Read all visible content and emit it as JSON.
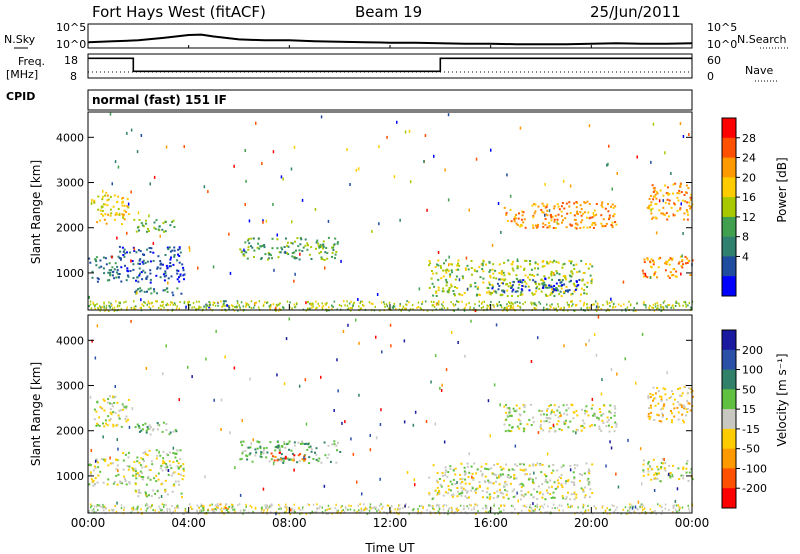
{
  "header": {
    "station": "Fort Hays West (fitACF)",
    "beam": "Beam 19",
    "date": "25/Jun/2011"
  },
  "strip_labels": {
    "nsky": "N.Sky",
    "nsearch": "N.Search",
    "freq": "Freq.",
    "freq_unit": "[MHz]",
    "nave": "Nave",
    "cpid": "CPID",
    "mode": "normal (fast) 151 IF"
  },
  "chart_data": [
    {
      "type": "line",
      "title": "N.Sky / N.Search",
      "x_label": "Time UT",
      "x_ticks_hours": [
        0,
        4,
        8,
        12,
        16,
        20,
        24
      ],
      "ylim_log10": [
        0,
        5
      ],
      "left_tick_labels": [
        "10^5",
        "10^0"
      ],
      "right_tick_labels": [
        "10^5",
        "10^0"
      ],
      "series": [
        {
          "name": "N.Sky",
          "x_hours": [
            0,
            1,
            2,
            3,
            4,
            4.5,
            5,
            6,
            7,
            8,
            9,
            10,
            11,
            12,
            13,
            14,
            15,
            16,
            17,
            18,
            19,
            20,
            21,
            22,
            23,
            24
          ],
          "log10_values": [
            1.2,
            1.4,
            1.6,
            2.1,
            2.7,
            2.8,
            2.4,
            1.8,
            1.6,
            1.6,
            1.4,
            1.3,
            1.2,
            1.1,
            1.1,
            1.0,
            0.9,
            0.9,
            0.8,
            0.8,
            0.8,
            0.9,
            1.0,
            0.9,
            0.9,
            1.0
          ]
        }
      ]
    },
    {
      "type": "line",
      "title": "Freq / Nave",
      "x_ticks_hours": [
        0,
        4,
        8,
        12,
        16,
        20,
        24
      ],
      "freq_ylim": [
        8,
        18
      ],
      "freq_tick_labels": [
        "18",
        "8"
      ],
      "nave_ylim": [
        0,
        60
      ],
      "nave_tick_labels": [
        "60",
        "0"
      ],
      "series": [
        {
          "name": "Freq.",
          "x_hours": [
            0,
            1.8,
            1.8,
            14.0,
            14.0,
            24
          ],
          "values": [
            16.2,
            16.2,
            10.8,
            10.8,
            16.2,
            16.2
          ]
        },
        {
          "name": "Nave",
          "x_hours": [
            0,
            24
          ],
          "values": [
            15,
            15
          ]
        }
      ]
    },
    {
      "type": "heatmap",
      "title": "Power",
      "ylabel": "Slant Range [km]",
      "ylim": [
        180,
        4560
      ],
      "y_ticks": [
        1000,
        2000,
        3000,
        4000
      ],
      "x_ticks_hours": [
        0,
        4,
        8,
        12,
        16,
        20,
        24
      ],
      "x_tick_labels": [
        "00:00",
        "04:00",
        "08:00",
        "12:00",
        "16:00",
        "20:00",
        "00:00"
      ],
      "colorbar_label": "Power [dB]",
      "colorbar_ticks": [
        "28",
        "24",
        "20",
        "16",
        "12",
        "8",
        "4"
      ],
      "colorbar_colors": [
        "#ff0000",
        "#ff5000",
        "#ff9900",
        "#ffcc00",
        "#a8c800",
        "#40a050",
        "#308070",
        "#204ca0",
        "#0000ff"
      ],
      "regions": [
        {
          "t": [
            0.2,
            1.6
          ],
          "r": [
            2100,
            2800
          ],
          "level": 3
        },
        {
          "t": [
            0.0,
            1.2
          ],
          "r": [
            800,
            1400
          ],
          "level": 6
        },
        {
          "t": [
            1.2,
            3.8
          ],
          "r": [
            800,
            1600
          ],
          "level": 7
        },
        {
          "t": [
            1.8,
            3.5
          ],
          "r": [
            1900,
            2200
          ],
          "level": 5
        },
        {
          "t": [
            1.8,
            3.8
          ],
          "r": [
            520,
            720
          ],
          "level": 6
        },
        {
          "t": [
            4.5,
            5.6
          ],
          "r": [
            260,
            400
          ],
          "level": 7
        },
        {
          "t": [
            6.0,
            10.0
          ],
          "r": [
            1300,
            1800
          ],
          "level": 5
        },
        {
          "t": [
            13.5,
            20.0
          ],
          "r": [
            500,
            1300
          ],
          "level": 4
        },
        {
          "t": [
            16.0,
            19.5
          ],
          "r": [
            600,
            900
          ],
          "level": 7
        },
        {
          "t": [
            16.5,
            21.0
          ],
          "r": [
            2000,
            2600
          ],
          "level": 2
        },
        {
          "t": [
            22.0,
            24.0
          ],
          "r": [
            900,
            1400
          ],
          "level": 2
        },
        {
          "t": [
            22.2,
            24.0
          ],
          "r": [
            2200,
            3000
          ],
          "level": 2
        }
      ]
    },
    {
      "type": "heatmap",
      "title": "Velocity",
      "ylabel": "Slant Range [km]",
      "xlabel": "Time UT",
      "ylim": [
        180,
        4560
      ],
      "y_ticks": [
        1000,
        2000,
        3000,
        4000
      ],
      "x_ticks_hours": [
        0,
        4,
        8,
        12,
        16,
        20,
        24
      ],
      "x_tick_labels": [
        "00:00",
        "04:00",
        "08:00",
        "12:00",
        "16:00",
        "20:00",
        "00:00"
      ],
      "colorbar_label": "Velocity [m s⁻¹]",
      "colorbar_ticks": [
        "200",
        "100",
        "50",
        "15",
        "-15",
        "-50",
        "-100",
        "-200"
      ],
      "colorbar_colors": [
        "#1a1aa0",
        "#2a50a8",
        "#30806a",
        "#60c040",
        "#c8c8c0",
        "#ffcc00",
        "#ff9900",
        "#ff5000",
        "#ff0000"
      ],
      "regions": [
        {
          "t": [
            0.2,
            1.6
          ],
          "r": [
            2100,
            2800
          ],
          "level": 4
        },
        {
          "t": [
            0.0,
            1.2
          ],
          "r": [
            800,
            1400
          ],
          "level": 4
        },
        {
          "t": [
            1.2,
            3.8
          ],
          "r": [
            800,
            1600
          ],
          "level": 4
        },
        {
          "t": [
            1.8,
            3.5
          ],
          "r": [
            1900,
            2200
          ],
          "level": 3
        },
        {
          "t": [
            1.8,
            3.8
          ],
          "r": [
            520,
            720
          ],
          "level": 4
        },
        {
          "t": [
            4.5,
            5.6
          ],
          "r": [
            260,
            400
          ],
          "level": 6
        },
        {
          "t": [
            6.0,
            10.0
          ],
          "r": [
            1300,
            1800
          ],
          "level": 3
        },
        {
          "t": [
            7.2,
            8.6
          ],
          "r": [
            1350,
            1550
          ],
          "level": 7
        },
        {
          "t": [
            13.5,
            20.0
          ],
          "r": [
            500,
            1300
          ],
          "level": 4
        },
        {
          "t": [
            16.5,
            21.0
          ],
          "r": [
            2000,
            2600
          ],
          "level": 4
        },
        {
          "t": [
            22.0,
            24.0
          ],
          "r": [
            900,
            1400
          ],
          "level": 4
        },
        {
          "t": [
            22.2,
            24.0
          ],
          "r": [
            2200,
            3000
          ],
          "level": 5
        }
      ]
    }
  ]
}
